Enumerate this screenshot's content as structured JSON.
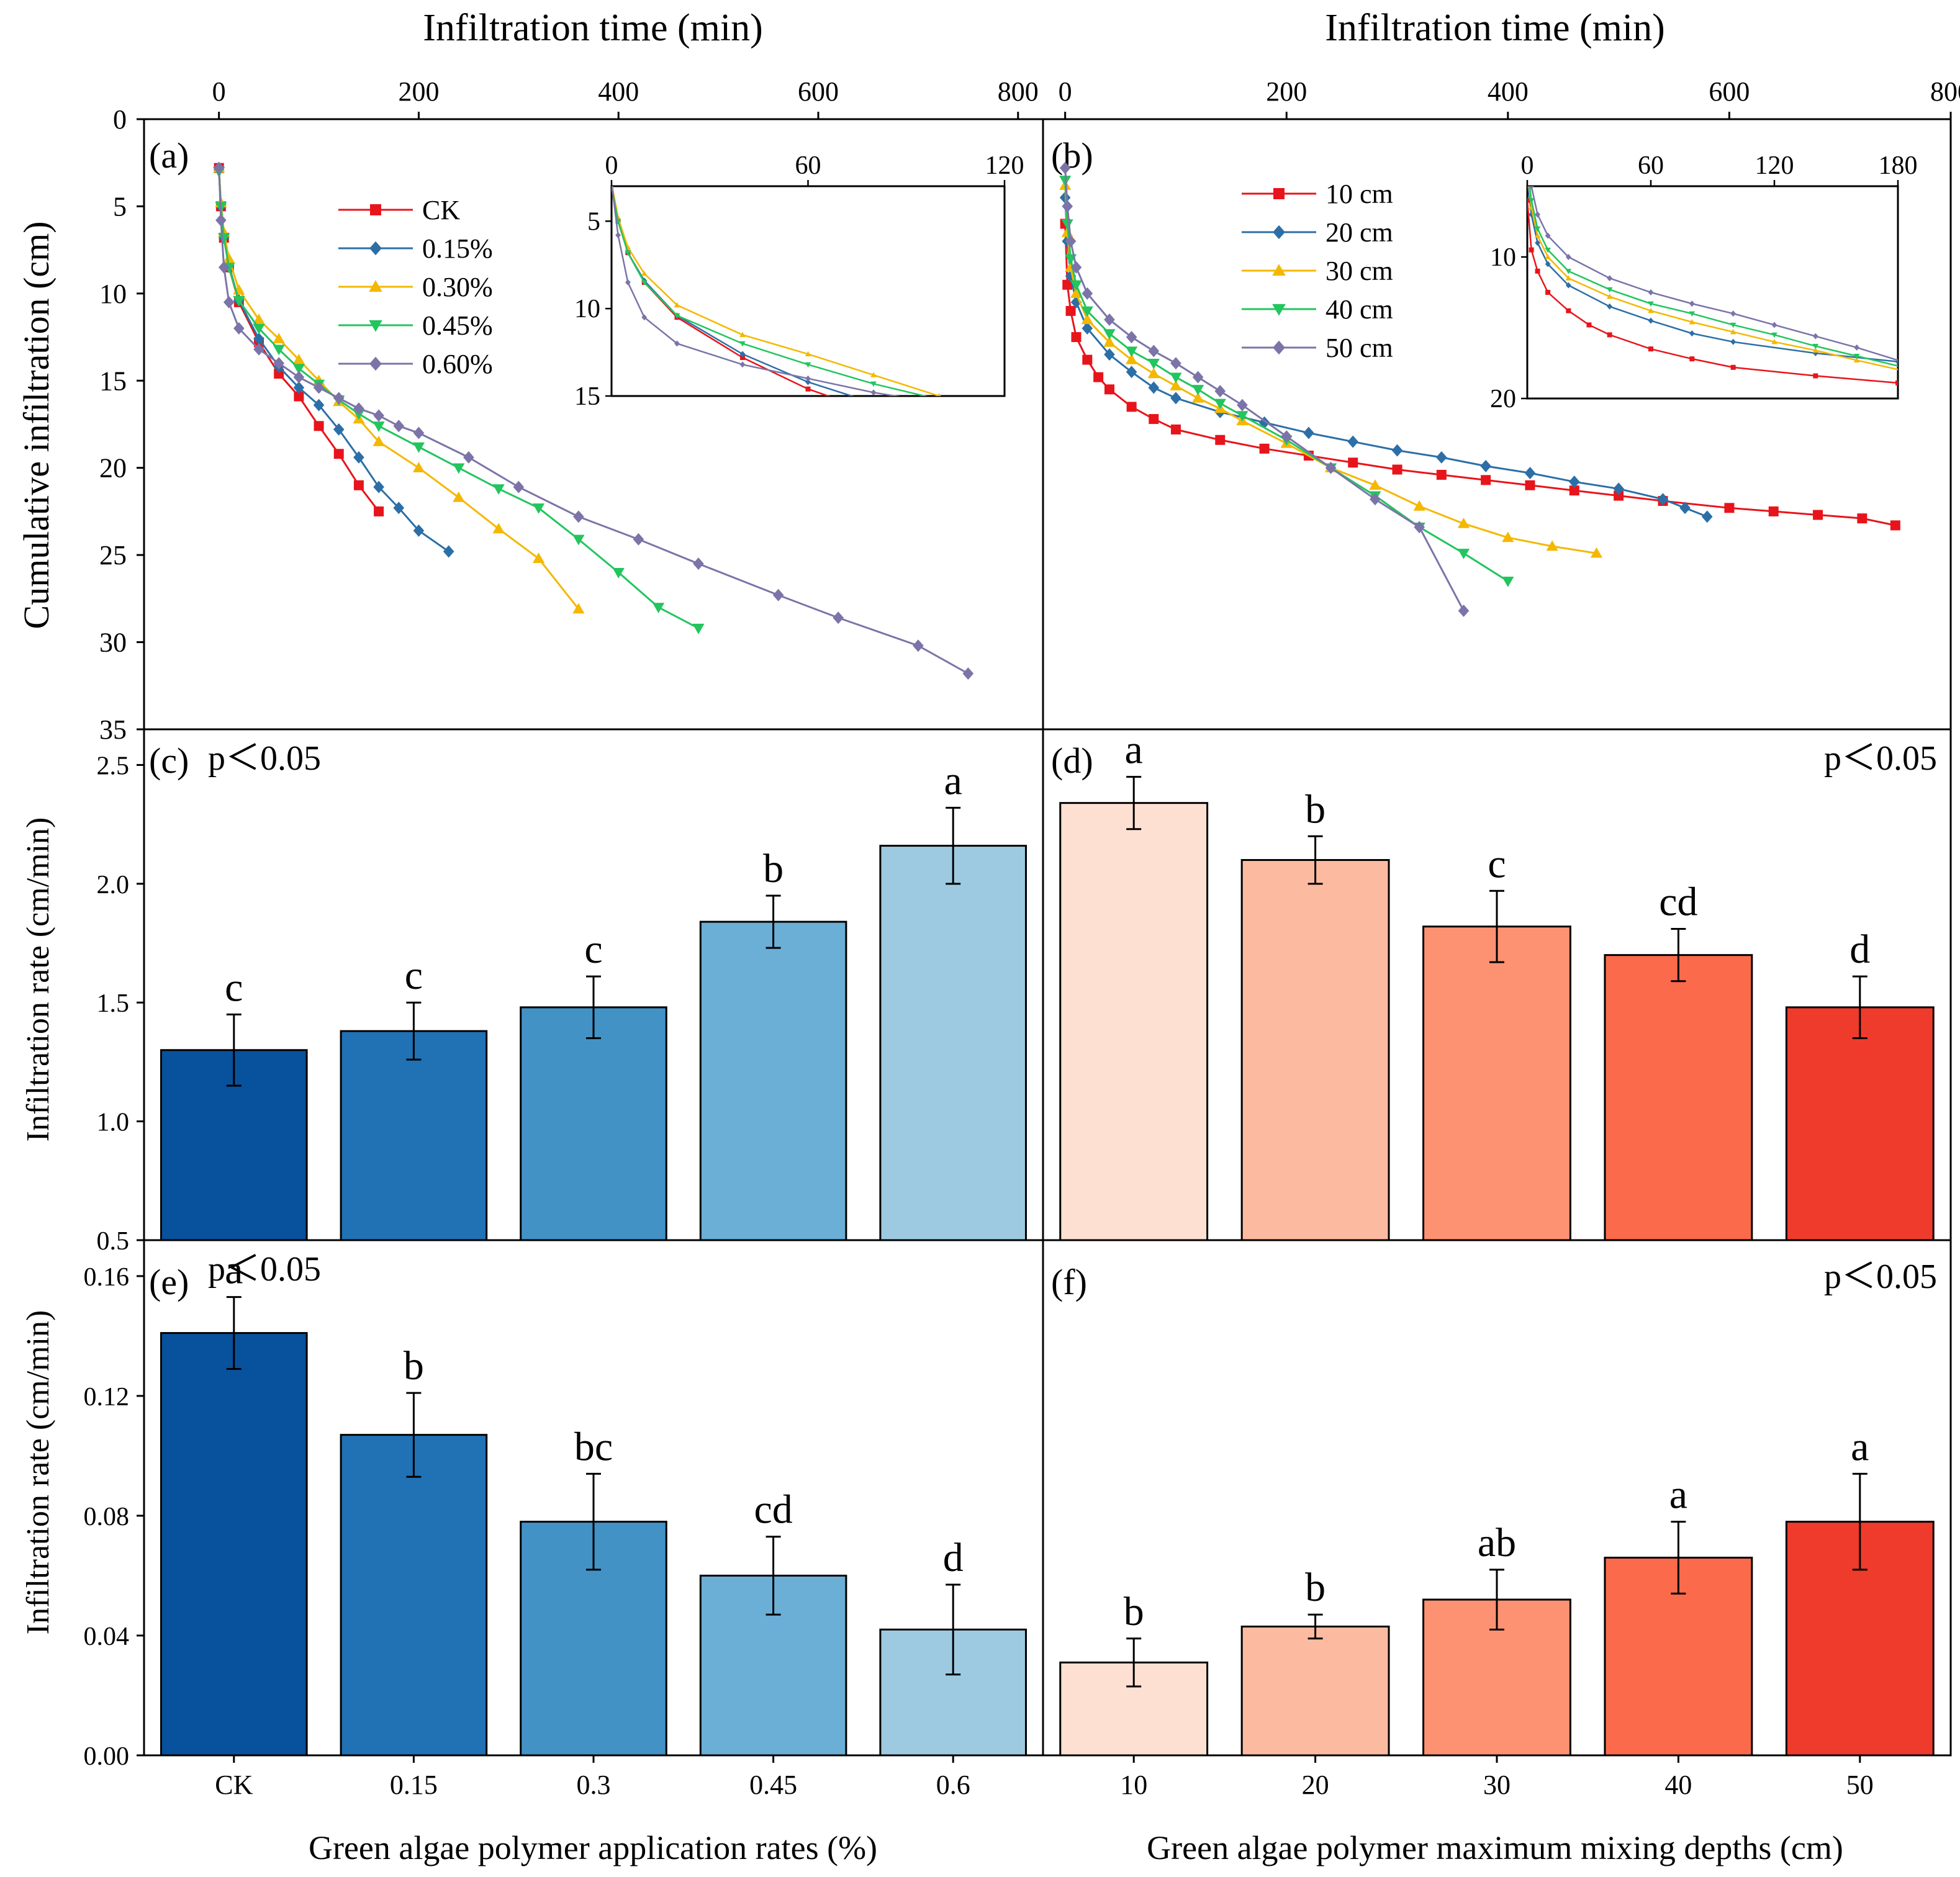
{
  "figure": {
    "top_xlabel_a": "Infiltration time (min)",
    "top_xlabel_b": "Infiltration time (min)",
    "ylabel_top": "Cumulative infiltration (cm)",
    "ylabel_c": "Infiltration rate (cm/min)",
    "ylabel_e": "Infiltration rate (cm/min)",
    "bottom_xlabel_left": "Green algae polymer application rates (%)",
    "bottom_xlabel_right": "Green algae polymer maximum mixing depths (cm)",
    "sig_text": "p＜0.05",
    "panel_labels": {
      "a": "(a)",
      "b": "(b)",
      "c": "(c)",
      "d": "(d)",
      "e": "(e)",
      "f": "(f)"
    }
  },
  "colors": {
    "blues": [
      "#08519c",
      "#2171b5",
      "#4292c6",
      "#6baed6",
      "#9ecae1"
    ],
    "reds": [
      "#fde0d2",
      "#fcbba1",
      "#fc9272",
      "#fb6a4a",
      "#ef3b2c"
    ],
    "line_a": [
      "#e8141b",
      "#2c6fa7",
      "#f4b800",
      "#22c55e",
      "#7b74a8"
    ],
    "line_b": [
      "#e8141b",
      "#2c6fa7",
      "#f4b800",
      "#22c55e",
      "#7b74a8"
    ]
  },
  "chart_data": [
    {
      "id": "a",
      "type": "line",
      "xlabel": "Infiltration time (min)",
      "ylabel": "Cumulative infiltration (cm)",
      "xlim": [
        -75,
        825
      ],
      "ylim": [
        0,
        35
      ],
      "y_inverted": true,
      "xticks": [
        0,
        200,
        400,
        600,
        800
      ],
      "yticks": [
        0,
        5,
        10,
        15,
        20,
        25,
        30,
        35
      ],
      "legend": "top-center",
      "series": [
        {
          "name": "CK",
          "marker": "square",
          "x": [
            0,
            2,
            5,
            10,
            20,
            40,
            60,
            80,
            100,
            120,
            140,
            160
          ],
          "y": [
            2.8,
            5,
            6.8,
            8.5,
            10.5,
            12.8,
            14.6,
            15.9,
            17.6,
            19.2,
            21,
            22.5
          ]
        },
        {
          "name": "0.15%",
          "marker": "diamond",
          "x": [
            0,
            2,
            5,
            10,
            20,
            40,
            60,
            80,
            100,
            120,
            140,
            160,
            180,
            200,
            230
          ],
          "y": [
            2.8,
            5,
            6.8,
            8.4,
            10.4,
            12.6,
            14.2,
            15.4,
            16.4,
            17.8,
            19.4,
            21.1,
            22.3,
            23.6,
            24.8
          ]
        },
        {
          "name": "0.30%",
          "marker": "triangle-up",
          "x": [
            0,
            2,
            5,
            10,
            20,
            40,
            60,
            80,
            100,
            120,
            140,
            160,
            200,
            240,
            280,
            320,
            360
          ],
          "y": [
            2.8,
            4.8,
            6.5,
            8,
            9.8,
            11.5,
            12.6,
            13.8,
            15,
            16.2,
            17.2,
            18.5,
            20,
            21.7,
            23.5,
            25.2,
            28.1
          ]
        },
        {
          "name": "0.45%",
          "marker": "triangle-down",
          "x": [
            0,
            2,
            5,
            10,
            20,
            40,
            60,
            80,
            100,
            120,
            140,
            160,
            200,
            240,
            280,
            320,
            360,
            400,
            440,
            480
          ],
          "y": [
            3,
            5,
            6.8,
            8.5,
            10.4,
            12,
            13.2,
            14.3,
            15.2,
            16.1,
            16.9,
            17.6,
            18.8,
            20,
            21.2,
            22.3,
            24.1,
            26,
            28,
            29.2
          ]
        },
        {
          "name": "0.60%",
          "marker": "diamond",
          "x": [
            0,
            2,
            5,
            10,
            20,
            40,
            60,
            80,
            100,
            120,
            140,
            160,
            180,
            200,
            250,
            300,
            360,
            420,
            480,
            560,
            620,
            700,
            750
          ],
          "y": [
            2.8,
            5.8,
            8.5,
            10.5,
            12,
            13.2,
            14,
            14.8,
            15.4,
            16,
            16.6,
            17,
            17.6,
            18,
            19.4,
            21.1,
            22.8,
            24.1,
            25.5,
            27.3,
            28.6,
            30.2,
            31.8
          ]
        }
      ],
      "inset": {
        "xlim": [
          0,
          120
        ],
        "ylim": [
          3,
          15
        ],
        "xticks": [
          0,
          60,
          120
        ],
        "yticks": [
          5,
          10,
          15
        ]
      }
    },
    {
      "id": "b",
      "type": "line",
      "xlabel": "Infiltration time (min)",
      "ylabel": "Cumulative infiltration (cm)",
      "xlim": [
        -20,
        800
      ],
      "ylim": [
        0,
        35
      ],
      "y_inverted": true,
      "xticks": [
        0,
        200,
        400,
        600,
        800
      ],
      "yticks": [
        0,
        5,
        10,
        15,
        20,
        25,
        30,
        35
      ],
      "legend": "top-center",
      "series": [
        {
          "name": "10 cm",
          "marker": "square",
          "x": [
            0,
            2,
            5,
            10,
            20,
            30,
            40,
            60,
            80,
            100,
            140,
            180,
            220,
            260,
            300,
            340,
            380,
            420,
            460,
            500,
            540,
            600,
            640,
            680,
            720,
            750
          ],
          "y": [
            6,
            9.5,
            11,
            12.5,
            13.8,
            14.8,
            15.5,
            16.5,
            17.2,
            17.8,
            18.4,
            18.9,
            19.3,
            19.7,
            20.1,
            20.4,
            20.7,
            21,
            21.3,
            21.6,
            21.9,
            22.3,
            22.5,
            22.7,
            22.9,
            23.3
          ]
        },
        {
          "name": "20 cm",
          "marker": "diamond",
          "x": [
            0,
            2,
            5,
            10,
            20,
            40,
            60,
            80,
            100,
            140,
            180,
            220,
            260,
            300,
            340,
            380,
            420,
            460,
            500,
            540,
            560,
            580
          ],
          "y": [
            4.5,
            7,
            9,
            10.5,
            12,
            13.5,
            14.5,
            15.4,
            16,
            16.8,
            17.4,
            18,
            18.5,
            19,
            19.4,
            19.9,
            20.3,
            20.8,
            21.2,
            21.8,
            22.3,
            22.8
          ]
        },
        {
          "name": "30 cm",
          "marker": "triangle-up",
          "x": [
            0,
            2,
            5,
            10,
            20,
            40,
            60,
            80,
            100,
            120,
            140,
            160,
            200,
            240,
            280,
            320,
            360,
            400,
            440,
            480
          ],
          "y": [
            3.8,
            6.5,
            8.5,
            10,
            11.5,
            12.8,
            13.8,
            14.6,
            15.3,
            16,
            16.6,
            17.3,
            18.6,
            20,
            21,
            22.2,
            23.2,
            24,
            24.5,
            24.9
          ]
        },
        {
          "name": "40 cm",
          "marker": "triangle-down",
          "x": [
            0,
            2,
            5,
            10,
            20,
            40,
            60,
            80,
            100,
            120,
            140,
            160,
            200,
            240,
            280,
            320,
            360,
            400
          ],
          "y": [
            3.5,
            6,
            8,
            9.5,
            11,
            12.3,
            13.3,
            14,
            14.8,
            15.5,
            16.3,
            17,
            18.4,
            20,
            21.6,
            23.4,
            24.9,
            26.5
          ]
        },
        {
          "name": "50 cm",
          "marker": "diamond",
          "x": [
            0,
            2,
            5,
            10,
            20,
            40,
            60,
            80,
            100,
            120,
            140,
            160,
            200,
            240,
            280,
            320,
            360
          ],
          "y": [
            2.8,
            5,
            7,
            8.5,
            10,
            11.5,
            12.5,
            13.3,
            14,
            14.8,
            15.6,
            16.4,
            18.2,
            20,
            21.8,
            23.4,
            28.2
          ]
        }
      ],
      "inset": {
        "xlim": [
          0,
          180
        ],
        "ylim": [
          5,
          20
        ],
        "xticks": [
          0,
          60,
          120,
          180
        ],
        "yticks": [
          10,
          20
        ]
      }
    },
    {
      "id": "c",
      "type": "bar",
      "ylabel": "Infiltration rate (cm/min)",
      "ylim": [
        0.5,
        2.65
      ],
      "yticks": [
        0.5,
        1.0,
        1.5,
        2.0,
        2.5
      ],
      "categories": [
        "CK",
        "0.15",
        "0.3",
        "0.45",
        "0.6"
      ],
      "values": [
        1.3,
        1.38,
        1.48,
        1.84,
        2.16
      ],
      "errors": [
        0.15,
        0.12,
        0.13,
        0.11,
        0.16
      ],
      "letters": [
        "c",
        "c",
        "c",
        "b",
        "a"
      ]
    },
    {
      "id": "d",
      "type": "bar",
      "ylabel": "Infiltration rate (cm/min)",
      "ylim": [
        0.5,
        2.65
      ],
      "yticks": [
        0.5,
        1.0,
        1.5,
        2.0,
        2.5
      ],
      "categories": [
        "10",
        "20",
        "30",
        "40",
        "50"
      ],
      "values": [
        2.34,
        2.1,
        1.82,
        1.7,
        1.48
      ],
      "errors": [
        0.11,
        0.1,
        0.15,
        0.11,
        0.13
      ],
      "letters": [
        "a",
        "b",
        "c",
        "cd",
        "d"
      ]
    },
    {
      "id": "e",
      "type": "bar",
      "ylabel": "Infiltration rate (cm/min)",
      "ylim": [
        0,
        0.172
      ],
      "yticks": [
        0.0,
        0.04,
        0.08,
        0.12,
        0.16
      ],
      "categories": [
        "CK",
        "0.15",
        "0.3",
        "0.45",
        "0.6"
      ],
      "values": [
        0.141,
        0.107,
        0.078,
        0.06,
        0.042
      ],
      "errors": [
        0.012,
        0.014,
        0.016,
        0.013,
        0.015
      ],
      "letters": [
        "a",
        "b",
        "bc",
        "cd",
        "d"
      ]
    },
    {
      "id": "f",
      "type": "bar",
      "ylabel": "Infiltration rate (cm/min)",
      "ylim": [
        0,
        0.172
      ],
      "yticks": [
        0.0,
        0.04,
        0.08,
        0.12,
        0.16
      ],
      "categories": [
        "10",
        "20",
        "30",
        "40",
        "50"
      ],
      "values": [
        0.031,
        0.043,
        0.052,
        0.066,
        0.078
      ],
      "errors": [
        0.008,
        0.004,
        0.01,
        0.012,
        0.016
      ],
      "letters": [
        "b",
        "b",
        "ab",
        "a",
        "a"
      ]
    }
  ]
}
